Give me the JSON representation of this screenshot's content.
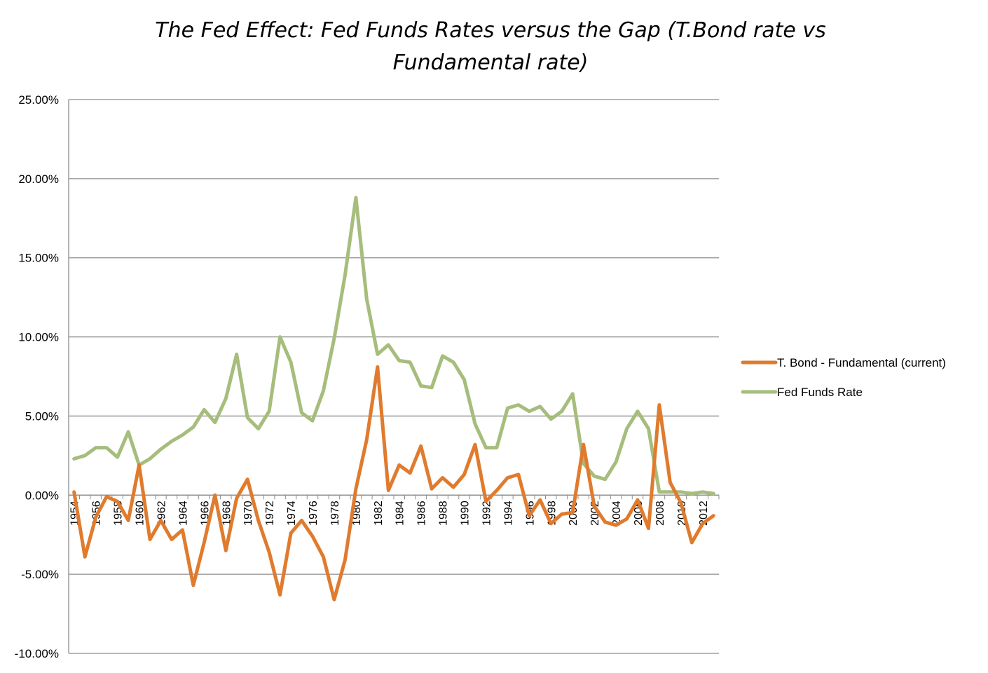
{
  "chart_data": {
    "type": "line",
    "title_lines": [
      "The Fed Effect: Fed Funds Rates versus the Gap (T.Bond rate vs",
      "Fundamental rate)"
    ],
    "xlabel": "",
    "ylabel": "",
    "ylim": [
      -0.1,
      0.25
    ],
    "y_ticks": [
      {
        "value": 0.25,
        "label": "25.00%"
      },
      {
        "value": 0.2,
        "label": "20.00%"
      },
      {
        "value": 0.15,
        "label": "15.00%"
      },
      {
        "value": 0.1,
        "label": "10.00%"
      },
      {
        "value": 0.05,
        "label": "5.00%"
      },
      {
        "value": 0.0,
        "label": "0.00%"
      },
      {
        "value": -0.05,
        "label": "-5.00%"
      },
      {
        "value": -0.1,
        "label": "-10.00%"
      }
    ],
    "x": [
      1954,
      1955,
      1956,
      1957,
      1958,
      1959,
      1960,
      1961,
      1962,
      1963,
      1964,
      1965,
      1966,
      1967,
      1968,
      1969,
      1970,
      1971,
      1972,
      1973,
      1974,
      1975,
      1976,
      1977,
      1978,
      1979,
      1980,
      1981,
      1982,
      1983,
      1984,
      1985,
      1986,
      1987,
      1988,
      1989,
      1990,
      1991,
      1992,
      1993,
      1994,
      1995,
      1996,
      1997,
      1998,
      1999,
      2000,
      2001,
      2002,
      2003,
      2004,
      2005,
      2006,
      2007,
      2008,
      2009,
      2010,
      2011,
      2012,
      2013
    ],
    "x_tick_labels": [
      "1954",
      "1956",
      "1958",
      "1960",
      "1962",
      "1964",
      "1966",
      "1968",
      "1970",
      "1972",
      "1974",
      "1976",
      "1978",
      "1980",
      "1982",
      "1984",
      "1986",
      "1988",
      "1990",
      "1992",
      "1994",
      "1996",
      "1998",
      "2000",
      "2002",
      "2004",
      "2006",
      "2008",
      "2010",
      "2012"
    ],
    "grid": true,
    "legend_position": "right",
    "series": [
      {
        "name": "T. Bond - Fundamental (current)",
        "color": "#e07b2e",
        "values": [
          0.002,
          -0.039,
          -0.014,
          -0.001,
          -0.004,
          -0.016,
          0.019,
          -0.028,
          -0.016,
          -0.028,
          -0.022,
          -0.057,
          -0.03,
          0.0,
          -0.035,
          -0.002,
          0.01,
          -0.016,
          -0.036,
          -0.063,
          -0.024,
          -0.016,
          -0.026,
          -0.039,
          -0.066,
          -0.041,
          0.004,
          0.035,
          0.081,
          0.003,
          0.019,
          0.014,
          0.031,
          0.004,
          0.011,
          0.005,
          0.013,
          0.032,
          -0.004,
          0.003,
          0.011,
          0.013,
          -0.013,
          -0.003,
          -0.018,
          -0.012,
          -0.011,
          0.032,
          -0.007,
          -0.017,
          -0.019,
          -0.015,
          -0.003,
          -0.021,
          0.057,
          0.008,
          -0.005,
          -0.03,
          -0.018,
          -0.013
        ]
      },
      {
        "name": "Fed Funds Rate",
        "color": "#a6bd7c",
        "values": [
          0.023,
          0.025,
          0.03,
          0.03,
          0.024,
          0.04,
          0.019,
          0.023,
          0.029,
          0.034,
          0.038,
          0.043,
          0.054,
          0.046,
          0.061,
          0.089,
          0.049,
          0.042,
          0.053,
          0.1,
          0.084,
          0.052,
          0.047,
          0.066,
          0.099,
          0.139,
          0.188,
          0.124,
          0.089,
          0.095,
          0.085,
          0.084,
          0.069,
          0.068,
          0.088,
          0.084,
          0.073,
          0.045,
          0.03,
          0.03,
          0.055,
          0.057,
          0.053,
          0.056,
          0.048,
          0.053,
          0.064,
          0.02,
          0.012,
          0.01,
          0.021,
          0.042,
          0.053,
          0.042,
          0.002,
          0.002,
          0.002,
          0.001,
          0.002,
          0.001
        ]
      }
    ]
  }
}
